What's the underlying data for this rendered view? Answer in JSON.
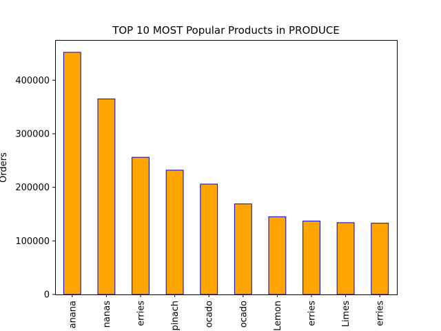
{
  "chart_data": {
    "type": "bar",
    "title": "TOP 10 MOST Popular Products in PRODUCE",
    "xlabel": "",
    "ylabel": "Orders",
    "categories": [
      "anana",
      "nanas",
      "erries",
      "pinach",
      "ocado",
      "ocado",
      "Lemon",
      "erries",
      "Limes",
      "erries"
    ],
    "values": [
      452000,
      365000,
      256000,
      232000,
      206000,
      169000,
      145000,
      137000,
      134000,
      133000
    ],
    "ylim": [
      0,
      475000
    ],
    "yticks": [
      0,
      100000,
      200000,
      300000,
      400000
    ],
    "ytick_labels": [
      "0",
      "100000",
      "200000",
      "300000",
      "400000"
    ],
    "grid": false,
    "colors": {
      "bar_fill": "#ffa500",
      "bar_edge": "#0000cd",
      "axis": "#000000"
    }
  }
}
